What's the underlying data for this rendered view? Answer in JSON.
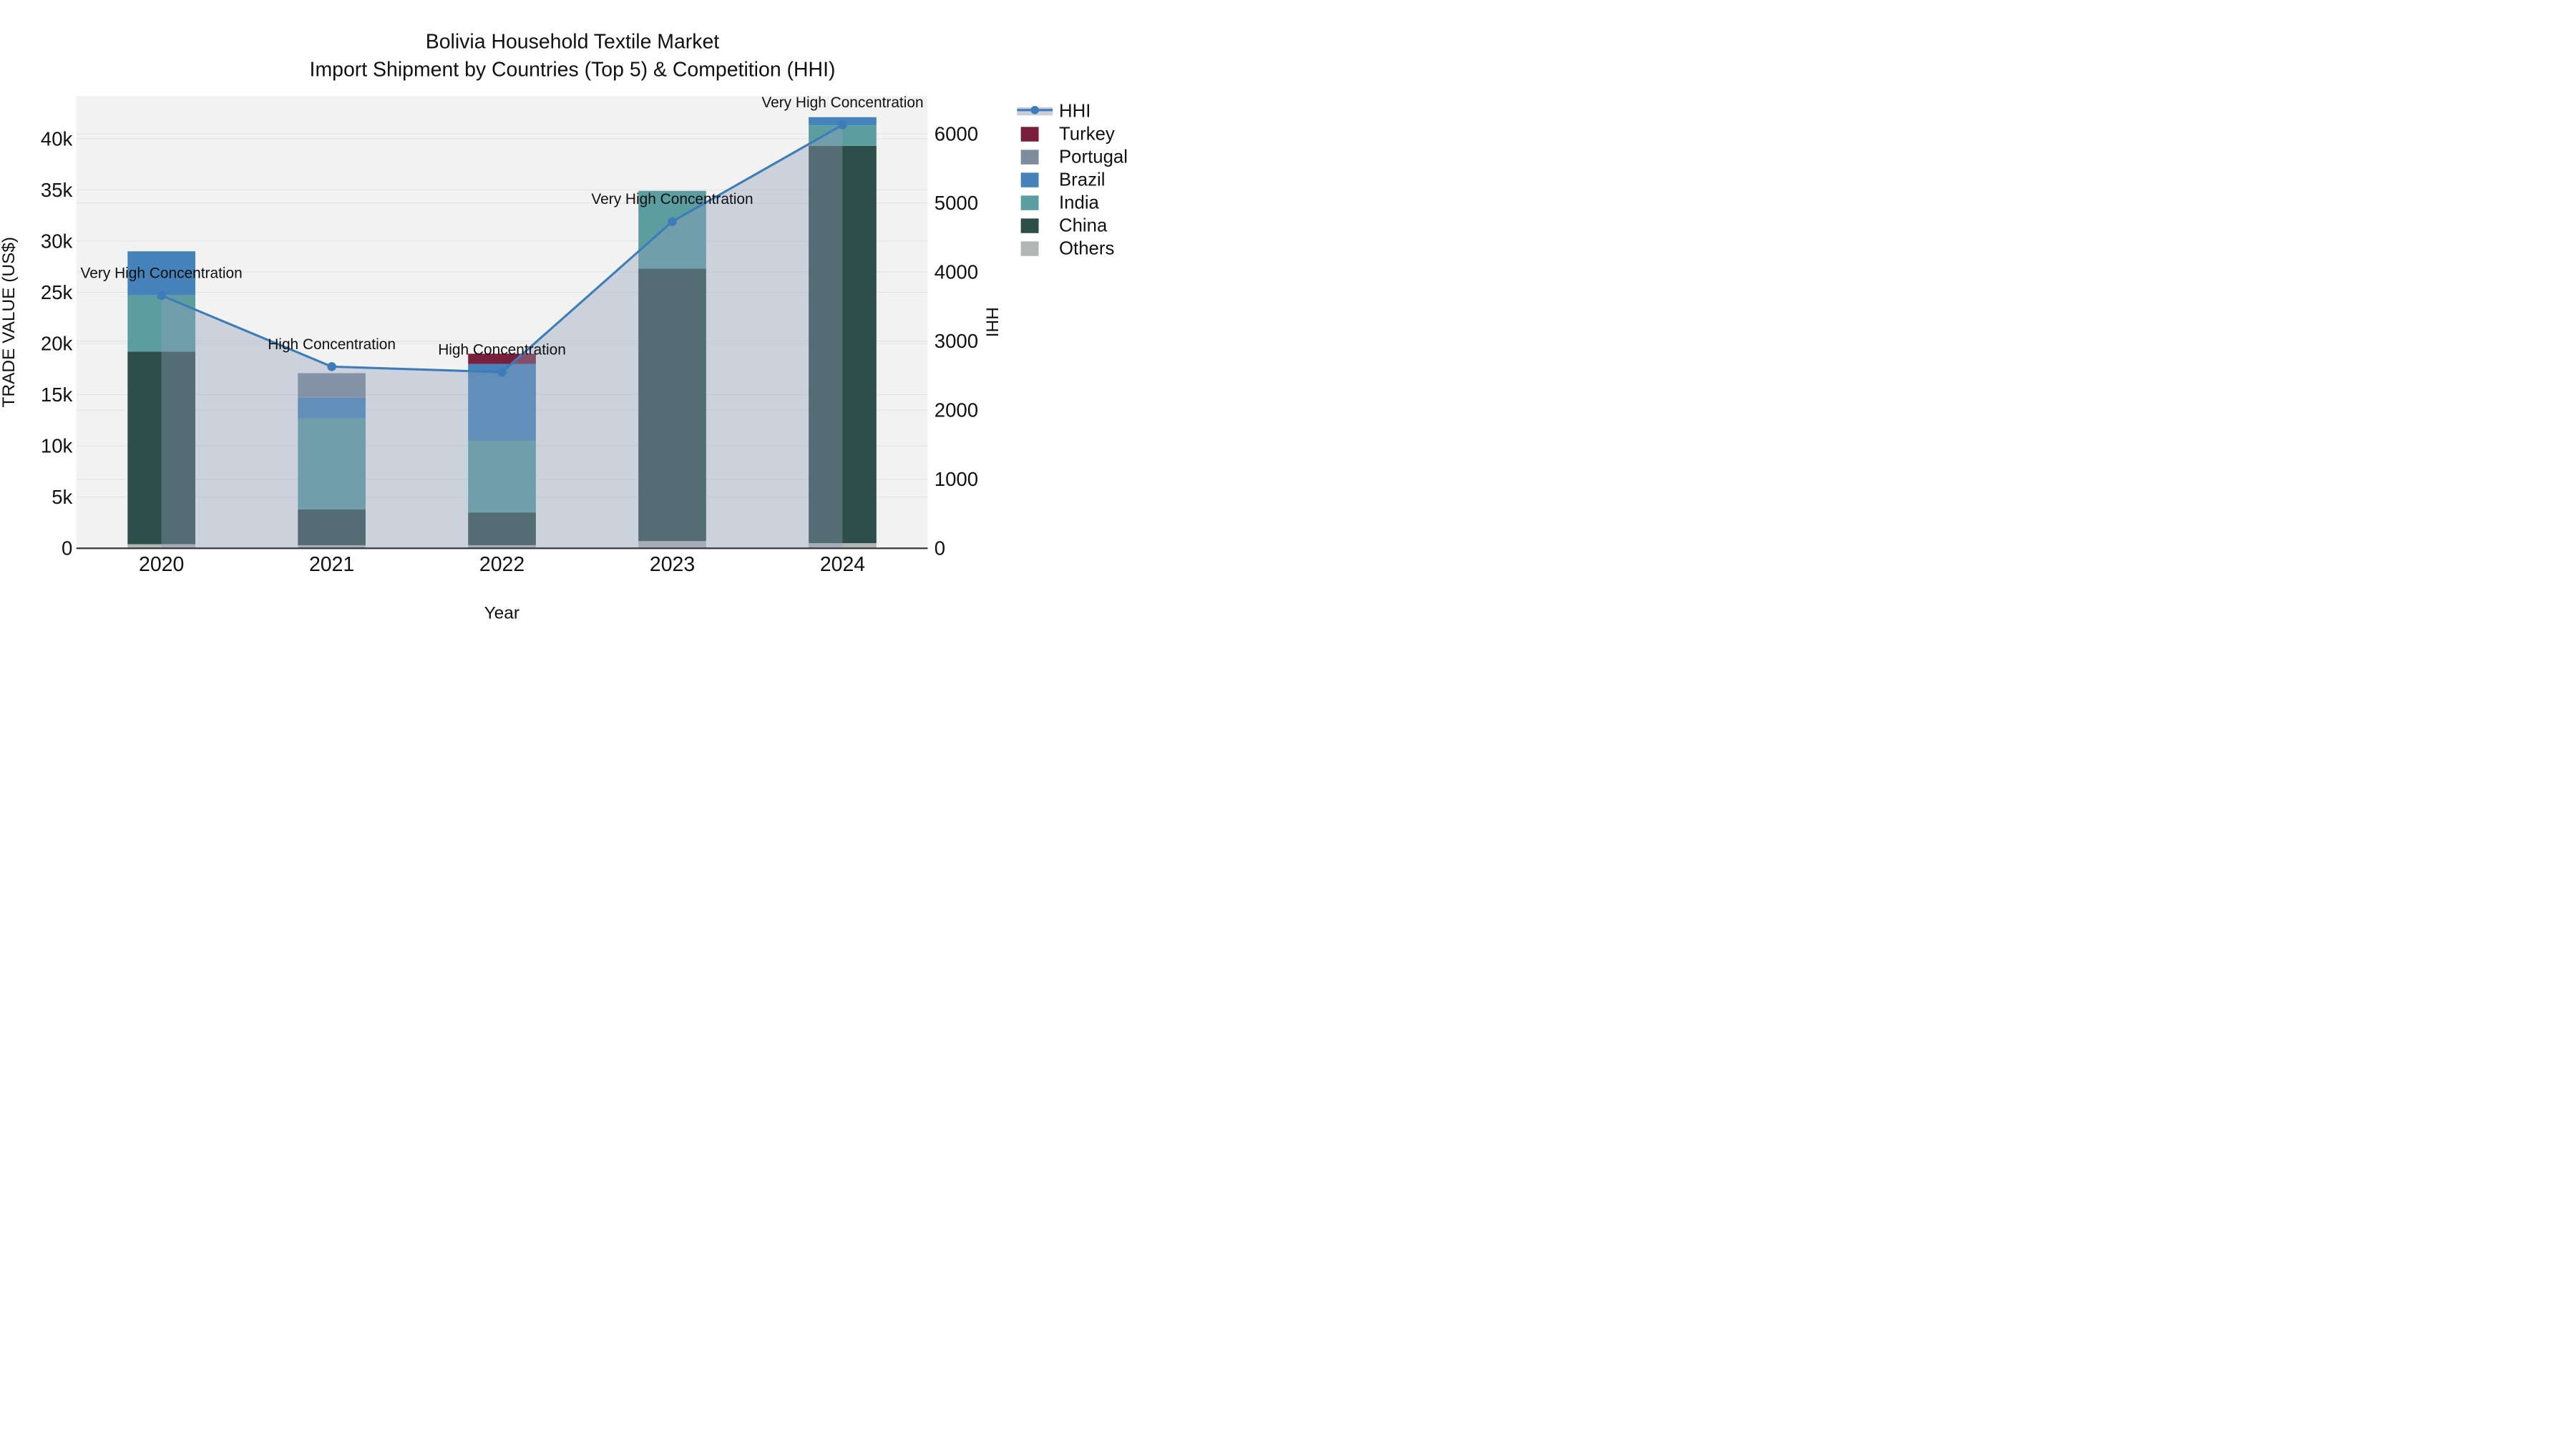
{
  "title": {
    "line1": "Bolivia Household Textile Market",
    "line2": "Import Shipment by Countries (Top 5) & Competition (HHI)"
  },
  "labels": {
    "x": "Year",
    "y_left": "TRADE VALUE (US$)",
    "y_right": "HHI"
  },
  "legend": {
    "items": [
      "HHI",
      "Turkey",
      "Portugal",
      "Brazil",
      "India",
      "China",
      "Others"
    ]
  },
  "colors": {
    "plot_background": "#f2f2f2",
    "gridline": "#e4e4e7",
    "axis_line": "#3a3a3a",
    "hhi_line": "#3e7cb9",
    "hhi_area": "rgba(145,160,185,0.39)",
    "legend_band": "#c9cfd9",
    "text": "#111111"
  },
  "chart_data": {
    "type": "bar",
    "subtype": "stacked-bar with HHI line + shaded area overlay, dual y-axes",
    "title": "Bolivia Household Textile Market — Import Shipment by Countries (Top 5) & Competition (HHI)",
    "xlabel": "Year",
    "ylabel_left": "TRADE VALUE (US$)",
    "ylabel_right": "HHI",
    "unit": "US$",
    "grid": true,
    "legend_position": "right",
    "categories": [
      "2020",
      "2021",
      "2022",
      "2023",
      "2024"
    ],
    "series": [
      {
        "name": "Turkey",
        "color": "#7a1e3d",
        "values": [
          0,
          0,
          1000,
          0,
          0
        ]
      },
      {
        "name": "Portugal",
        "color": "#7e8c9d",
        "values": [
          0,
          2400,
          0,
          0,
          0
        ]
      },
      {
        "name": "Brazil",
        "color": "#4583ba",
        "values": [
          4300,
          2000,
          7500,
          0,
          800
        ]
      },
      {
        "name": "India",
        "color": "#5c9da0",
        "values": [
          5500,
          8900,
          7000,
          7600,
          2000
        ]
      },
      {
        "name": "China",
        "color": "#2e4e4a",
        "values": [
          18800,
          3500,
          3200,
          26600,
          38800
        ]
      },
      {
        "name": "Others",
        "color": "#b3b6b7",
        "values": [
          400,
          300,
          300,
          700,
          500
        ]
      }
    ],
    "bar_totals": [
      29000,
      17100,
      19000,
      34900,
      42100
    ],
    "line": {
      "name": "HHI",
      "axis": "right",
      "color": "#3e7cb9",
      "area_fill": "rgba(145,160,185,0.39)",
      "values": [
        3660,
        2630,
        2550,
        4730,
        6130
      ]
    },
    "annotations": [
      "Very High Concentration",
      "High Concentration",
      "High Concentration",
      "Very High Concentration",
      "Very High Concentration"
    ],
    "y_left": {
      "ticks": [
        "0",
        "5k",
        "10k",
        "15k",
        "20k",
        "25k",
        "30k",
        "35k",
        "40k"
      ],
      "tick_values": [
        0,
        5000,
        10000,
        15000,
        20000,
        25000,
        30000,
        35000,
        40000
      ],
      "range": [
        0,
        44200
      ]
    },
    "y_right": {
      "ticks": [
        "0",
        "1000",
        "2000",
        "3000",
        "4000",
        "5000",
        "6000"
      ],
      "tick_values": [
        0,
        1000,
        2000,
        3000,
        4000,
        5000,
        6000
      ],
      "range": [
        0,
        6550
      ]
    }
  }
}
